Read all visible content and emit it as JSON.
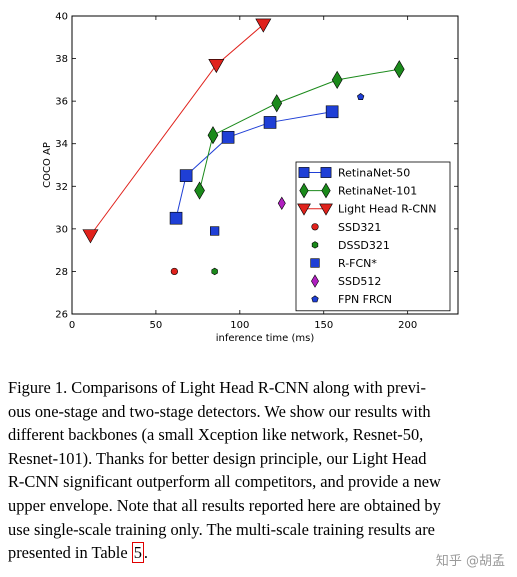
{
  "chart_data": {
    "type": "scatter",
    "xlabel": "inference time (ms)",
    "ylabel": "COCO AP",
    "xlim": [
      0,
      230
    ],
    "ylim": [
      26,
      40
    ],
    "xticks": [
      0,
      50,
      100,
      150,
      200
    ],
    "yticks": [
      26,
      28,
      30,
      32,
      34,
      36,
      38,
      40
    ],
    "grid": false,
    "legend_position": "right",
    "series": [
      {
        "name": "RetinaNet-50",
        "marker": "square-line",
        "color": "#1f3fd6",
        "x": [
          62,
          68,
          93,
          118,
          155
        ],
        "y": [
          30.5,
          32.5,
          34.3,
          35.0,
          35.5
        ]
      },
      {
        "name": "RetinaNet-101",
        "marker": "diamond-line",
        "color": "#1b8a1b",
        "x": [
          76,
          84,
          122,
          158,
          195
        ],
        "y": [
          31.8,
          34.4,
          35.9,
          37.0,
          37.5
        ]
      },
      {
        "name": "Light Head R-CNN",
        "marker": "triangle-line",
        "color": "#e0221c",
        "x": [
          11,
          86,
          114
        ],
        "y": [
          29.7,
          37.7,
          39.6
        ]
      },
      {
        "name": "SSD321",
        "marker": "circle",
        "color": "#e0221c",
        "x": [
          61
        ],
        "y": [
          28.0
        ]
      },
      {
        "name": "DSSD321",
        "marker": "hexagon",
        "color": "#1b8a1b",
        "x": [
          85
        ],
        "y": [
          28.0
        ]
      },
      {
        "name": "R-FCN*",
        "marker": "square",
        "color": "#1f3fd6",
        "x": [
          85
        ],
        "y": [
          29.9
        ]
      },
      {
        "name": "SSD512",
        "marker": "diamond",
        "color": "#b020c0",
        "x": [
          125
        ],
        "y": [
          31.2
        ]
      },
      {
        "name": "FPN FRCN",
        "marker": "pentagon",
        "color": "#1f3fd6",
        "x": [
          172
        ],
        "y": [
          36.2
        ]
      }
    ]
  },
  "caption": {
    "lines": [
      "Figure 1. Comparisons of Light Head R-CNN along with previ-",
      "ous one-stage and two-stage detectors. We show our results with",
      "different backbones (a small Xception like network, Resnet-50,",
      "Resnet-101). Thanks for better design principle, our Light Head",
      "R-CNN significant outperform all competitors, and provide a new",
      "upper envelope. Note that all results reported here are obtained by",
      "use single-scale training only. The multi-scale training results are"
    ],
    "last_prefix": "presented in Table ",
    "table_ref": "5",
    "last_suffix": "."
  },
  "watermark": "知乎 @胡孟"
}
